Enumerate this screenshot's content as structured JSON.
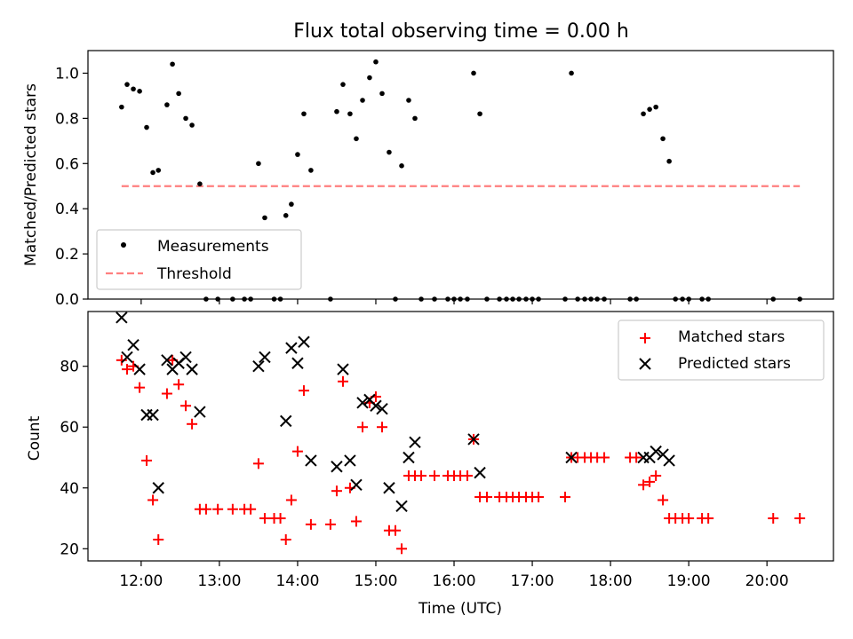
{
  "chart_data": [
    {
      "type": "scatter",
      "title": "Flux total observing time = 0.00 h",
      "xlabel": "",
      "ylabel": "Matched/Predicted stars",
      "x_unit": "hours (UTC)",
      "xlim": [
        11.32,
        20.85
      ],
      "ylim": [
        0.0,
        1.1
      ],
      "yticks": [
        0.0,
        0.2,
        0.4,
        0.6,
        0.8,
        1.0
      ],
      "ytick_labels": [
        "0.0",
        "0.2",
        "0.4",
        "0.6",
        "0.8",
        "1.0"
      ],
      "grid": false,
      "legend": {
        "position": "lower-left",
        "entries": [
          "Measurements",
          "Threshold"
        ]
      },
      "series": [
        {
          "name": "Measurements",
          "marker": "dot",
          "color": "#000000",
          "x": [
            11.75,
            11.82,
            11.9,
            11.98,
            12.07,
            12.15,
            12.22,
            12.33,
            12.4,
            12.48,
            12.57,
            12.65,
            12.75,
            12.83,
            12.98,
            13.17,
            13.32,
            13.4,
            13.5,
            13.58,
            13.7,
            13.78,
            13.85,
            13.92,
            14.0,
            14.08,
            14.17,
            14.42,
            14.5,
            14.58,
            14.67,
            14.75,
            14.83,
            14.92,
            15.0,
            15.08,
            15.17,
            15.25,
            15.33,
            15.42,
            15.5,
            15.58,
            15.75,
            15.92,
            16.0,
            16.08,
            16.17,
            16.25,
            16.33,
            16.42,
            16.58,
            16.67,
            16.75,
            16.83,
            16.92,
            17.0,
            17.08,
            17.42,
            17.5,
            17.58,
            17.67,
            17.75,
            17.83,
            17.92,
            18.25,
            18.33,
            18.42,
            18.5,
            18.58,
            18.67,
            18.75,
            18.83,
            18.92,
            19.0,
            19.17,
            19.25,
            20.08,
            20.42
          ],
          "y": [
            0.85,
            0.95,
            0.93,
            0.92,
            0.76,
            0.56,
            0.57,
            0.86,
            1.04,
            0.91,
            0.8,
            0.77,
            0.51,
            0.0,
            0.0,
            0.0,
            0.0,
            0.0,
            0.6,
            0.36,
            0.0,
            0.0,
            0.37,
            0.42,
            0.64,
            0.82,
            0.57,
            0.0,
            0.83,
            0.95,
            0.82,
            0.71,
            0.88,
            0.98,
            1.05,
            0.91,
            0.65,
            0.0,
            0.59,
            0.88,
            0.8,
            0.0,
            0.0,
            0.0,
            0.0,
            0.0,
            0.0,
            1.0,
            0.82,
            0.0,
            0.0,
            0.0,
            0.0,
            0.0,
            0.0,
            0.0,
            0.0,
            0.0,
            1.0,
            0.0,
            0.0,
            0.0,
            0.0,
            0.0,
            0.0,
            0.0,
            0.82,
            0.84,
            0.85,
            0.71,
            0.61,
            0.0,
            0.0,
            0.0,
            0.0,
            0.0,
            0.0,
            0.0
          ]
        },
        {
          "name": "Threshold",
          "style": "dashed",
          "color": "#ff7f7f",
          "x": [
            11.75,
            20.42
          ],
          "y": [
            0.5,
            0.5
          ]
        }
      ]
    },
    {
      "type": "scatter",
      "title": "",
      "xlabel": "Time (UTC)",
      "ylabel": "Count",
      "x_unit": "hours (UTC)",
      "xlim": [
        11.32,
        20.85
      ],
      "ylim": [
        16,
        98
      ],
      "xticks": [
        12,
        13,
        14,
        15,
        16,
        17,
        18,
        19,
        20
      ],
      "xtick_labels": [
        "12:00",
        "13:00",
        "14:00",
        "15:00",
        "16:00",
        "17:00",
        "18:00",
        "19:00",
        "20:00"
      ],
      "yticks": [
        20,
        40,
        60,
        80
      ],
      "ytick_labels": [
        "20",
        "40",
        "60",
        "80"
      ],
      "grid": false,
      "legend": {
        "position": "upper-right",
        "entries": [
          "Matched stars",
          "Predicted stars"
        ]
      },
      "series": [
        {
          "name": "Matched stars",
          "marker": "plus",
          "color": "#ff0000",
          "x": [
            11.75,
            11.82,
            11.9,
            11.98,
            12.07,
            12.15,
            12.22,
            12.33,
            12.4,
            12.48,
            12.57,
            12.65,
            12.75,
            12.83,
            12.98,
            13.17,
            13.32,
            13.4,
            13.5,
            13.58,
            13.7,
            13.78,
            13.85,
            13.92,
            14.0,
            14.08,
            14.17,
            14.42,
            14.5,
            14.58,
            14.67,
            14.75,
            14.83,
            14.92,
            15.0,
            15.08,
            15.17,
            15.25,
            15.33,
            15.42,
            15.5,
            15.58,
            15.75,
            15.92,
            16.0,
            16.08,
            16.17,
            16.25,
            16.33,
            16.42,
            16.58,
            16.67,
            16.75,
            16.83,
            16.92,
            17.0,
            17.08,
            17.42,
            17.5,
            17.58,
            17.67,
            17.75,
            17.83,
            17.92,
            18.25,
            18.33,
            18.42,
            18.5,
            18.58,
            18.67,
            18.75,
            18.83,
            18.92,
            19.0,
            19.17,
            19.25,
            20.08,
            20.42
          ],
          "y": [
            82,
            79,
            80,
            73,
            49,
            36,
            23,
            71,
            82,
            74,
            67,
            61,
            33,
            33,
            33,
            33,
            33,
            33,
            48,
            30,
            30,
            30,
            23,
            36,
            52,
            72,
            28,
            28,
            39,
            75,
            40,
            29,
            60,
            68,
            70,
            60,
            26,
            26,
            20,
            44,
            44,
            44,
            44,
            44,
            44,
            44,
            44,
            56,
            37,
            37,
            37,
            37,
            37,
            37,
            37,
            37,
            37,
            37,
            50,
            50,
            50,
            50,
            50,
            50,
            50,
            50,
            41,
            42,
            44,
            36,
            30,
            30,
            30,
            30,
            30,
            30,
            30,
            30
          ]
        },
        {
          "name": "Predicted stars",
          "marker": "x",
          "color": "#000000",
          "x": [
            11.75,
            11.82,
            11.9,
            11.98,
            12.07,
            12.15,
            12.22,
            12.33,
            12.4,
            12.48,
            12.57,
            12.65,
            12.75,
            13.5,
            13.58,
            13.85,
            13.92,
            14.0,
            14.08,
            14.17,
            14.5,
            14.58,
            14.67,
            14.75,
            14.83,
            14.92,
            15.0,
            15.08,
            15.17,
            15.33,
            15.42,
            15.5,
            16.25,
            16.33,
            17.5,
            18.42,
            18.5,
            18.58,
            18.67,
            18.75
          ],
          "y": [
            96,
            83,
            87,
            79,
            64,
            64,
            40,
            82,
            79,
            81,
            83,
            79,
            65,
            80,
            83,
            62,
            86,
            81,
            88,
            49,
            47,
            79,
            49,
            41,
            68,
            69,
            67,
            66,
            40,
            34,
            50,
            55,
            56,
            45,
            50,
            50,
            50,
            52,
            51,
            49
          ]
        }
      ]
    }
  ]
}
